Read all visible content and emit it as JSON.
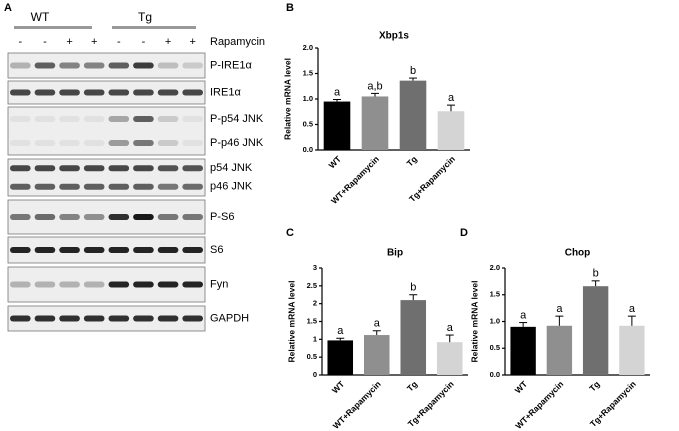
{
  "panels": [
    "A",
    "B",
    "C",
    "D"
  ],
  "blot": {
    "groups": [
      "WT",
      "Tg"
    ],
    "treatment_signs": [
      "-",
      "-",
      "+",
      "+",
      "-",
      "-",
      "+",
      "+"
    ],
    "treatment": "Rapamycin",
    "rows": [
      [
        "P-IRE1α"
      ],
      [
        "IRE1α"
      ],
      [
        "P-p54 JNK",
        "P-p46 JNK"
      ],
      [
        "p54 JNK",
        "p46 JNK"
      ],
      [
        "P-S6"
      ],
      [
        "S6"
      ],
      [
        "Fyn"
      ],
      [
        "GAPDH"
      ]
    ]
  },
  "chart_data": [
    {
      "type": "bar",
      "title": "Xbp1s",
      "y_label": "Relative mRNA level",
      "categories": [
        "WT",
        "WT+Rapamycin",
        "Tg",
        "Tg+Rapamycin"
      ],
      "values": [
        0.95,
        1.05,
        1.36,
        0.76
      ],
      "errors": [
        0.04,
        0.06,
        0.05,
        0.12
      ],
      "letters": [
        "a",
        "a,b",
        "b",
        "a"
      ],
      "colors": [
        "#000000",
        "#8f8f8f",
        "#6f6f6f",
        "#d4d4d4"
      ],
      "ylim": [
        0,
        2
      ],
      "yticks": [
        {
          "value": 0,
          "label": "0.0"
        },
        0.5,
        {
          "value": 1,
          "label": "1.0"
        },
        1.5,
        {
          "value": 2,
          "label": "2.0"
        }
      ]
    },
    {
      "type": "bar",
      "title": "Bip",
      "y_label": "Relative mRNA level",
      "categories": [
        "WT",
        "WT+Rapamycin",
        "Tg",
        "Tg+Rapamycin"
      ],
      "values": [
        0.97,
        1.12,
        2.1,
        0.92
      ],
      "errors": [
        0.06,
        0.12,
        0.15,
        0.2
      ],
      "letters": [
        "a",
        "a",
        "b",
        "a"
      ],
      "colors": [
        "#000000",
        "#8f8f8f",
        "#6f6f6f",
        "#d4d4d4"
      ],
      "ylim": [
        0,
        3
      ],
      "yticks": [
        0,
        0.5,
        1,
        1.5,
        2,
        2.5,
        3
      ]
    },
    {
      "type": "bar",
      "title": "Chop",
      "y_label": "Relative mRNA level",
      "categories": [
        "WT",
        "WT+Rapamycin",
        "Tg",
        "Tg+Rapamycin"
      ],
      "values": [
        0.9,
        0.92,
        1.66,
        0.92
      ],
      "errors": [
        0.08,
        0.18,
        0.1,
        0.18
      ],
      "letters": [
        "a",
        "a",
        "b",
        "a"
      ],
      "colors": [
        "#000000",
        "#8f8f8f",
        "#6f6f6f",
        "#d4d4d4"
      ],
      "ylim": [
        0,
        2
      ],
      "yticks": [
        {
          "value": 0,
          "label": "0.0"
        },
        0.5,
        {
          "value": 1,
          "label": "1.0"
        },
        1.5,
        {
          "value": 2,
          "label": "2.0"
        }
      ]
    }
  ]
}
